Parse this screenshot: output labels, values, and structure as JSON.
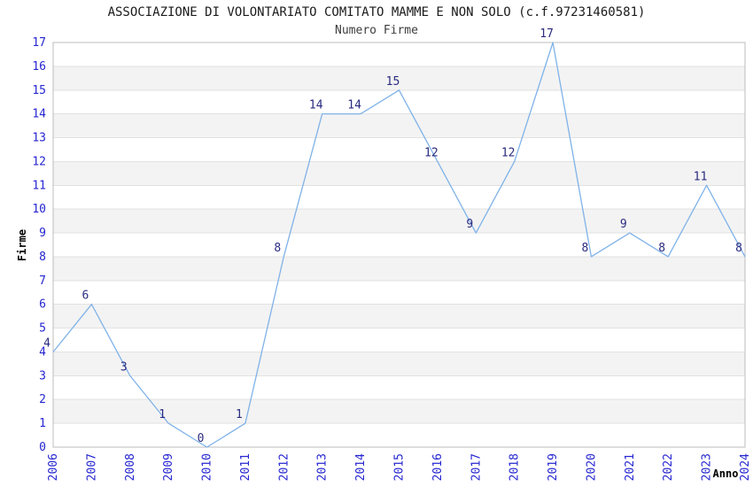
{
  "chart_data": {
    "type": "line",
    "title": "ASSOCIAZIONE DI VOLONTARIATO COMITATO MAMME E NON SOLO (c.f.97231460581)",
    "subtitle": "Numero Firme",
    "xlabel": "Anno",
    "ylabel": "Firme",
    "categories": [
      "2006",
      "2007",
      "2008",
      "2009",
      "2010",
      "2011",
      "2012",
      "2013",
      "2014",
      "2015",
      "2016",
      "2017",
      "2018",
      "2019",
      "2020",
      "2021",
      "2022",
      "2023",
      "2024"
    ],
    "values": [
      4,
      6,
      3,
      1,
      0,
      1,
      8,
      14,
      14,
      15,
      12,
      9,
      12,
      17,
      8,
      9,
      8,
      11,
      8
    ],
    "ylim": [
      0,
      17
    ],
    "ytick_step": 1,
    "grid": true,
    "legend": "none",
    "layout_hints": {
      "alternating_bands": true,
      "x_tick_rotation_deg": -90,
      "data_labels_shown": true
    },
    "colors": {
      "line": "#7fb2e8",
      "tick_label": "#2626d1",
      "data_label": "#2b2b80",
      "band_fill": "#f3f3f3",
      "gridline": "#e2e2e2",
      "plot_border": "#bcbcbc",
      "title": "#1b1b1b",
      "subtitle": "#3d3d3d",
      "axis_title": "#000000",
      "background": "#ffffff"
    }
  }
}
